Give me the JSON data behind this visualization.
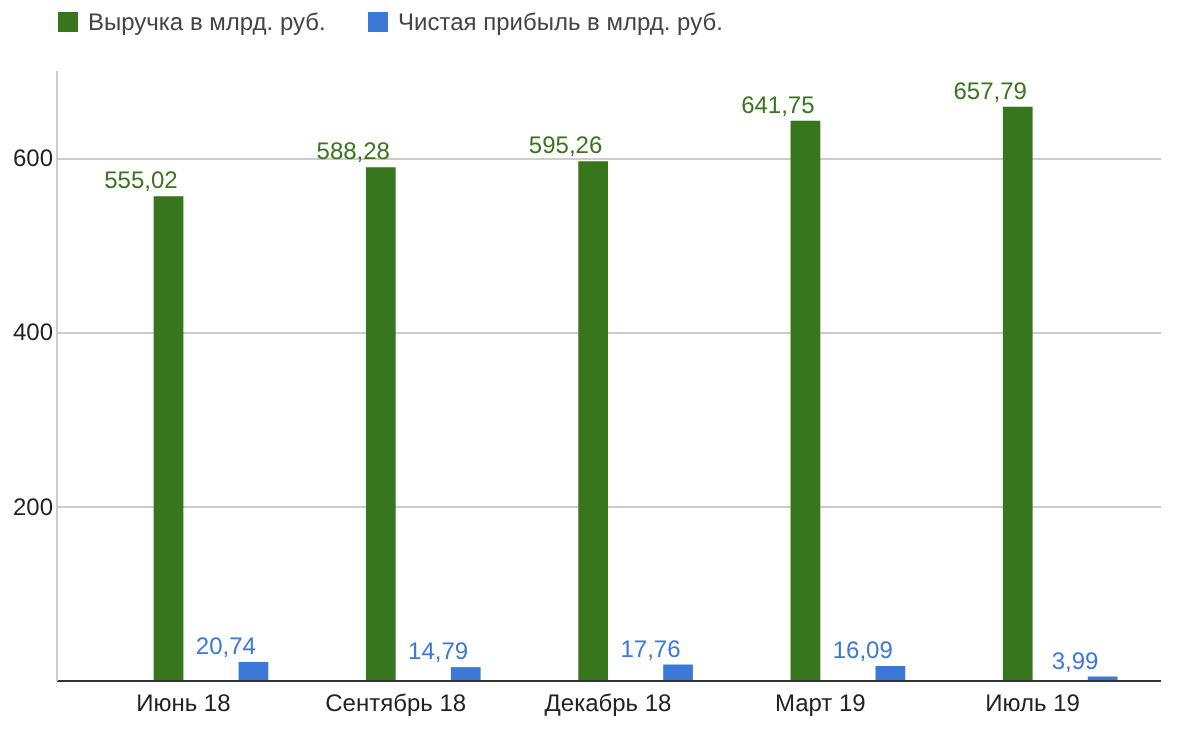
{
  "chart_data": {
    "type": "bar",
    "categories": [
      "Июнь 18",
      "Сентябрь 18",
      "Декабрь 18",
      "Март 19",
      "Июль 19"
    ],
    "series": [
      {
        "name": "Выручка в млрд. руб.",
        "color": "#38761d",
        "values": [
          555.02,
          588.28,
          595.26,
          641.75,
          657.79
        ],
        "value_labels": [
          "555,02",
          "588,28",
          "595,26",
          "641,75",
          "657,79"
        ]
      },
      {
        "name": "Чистая прибыль в млрд. руб.",
        "color": "#3c78d8",
        "values": [
          20.74,
          14.79,
          17.76,
          16.09,
          3.99
        ],
        "value_labels": [
          "20,74",
          "14,79",
          "17,76",
          "16,09",
          "3,99"
        ]
      }
    ],
    "ylim": [
      0,
      700
    ],
    "yticks": [
      {
        "value": 0,
        "label": null
      },
      200,
      400,
      600
    ],
    "grid": "y",
    "legend": "top left"
  }
}
